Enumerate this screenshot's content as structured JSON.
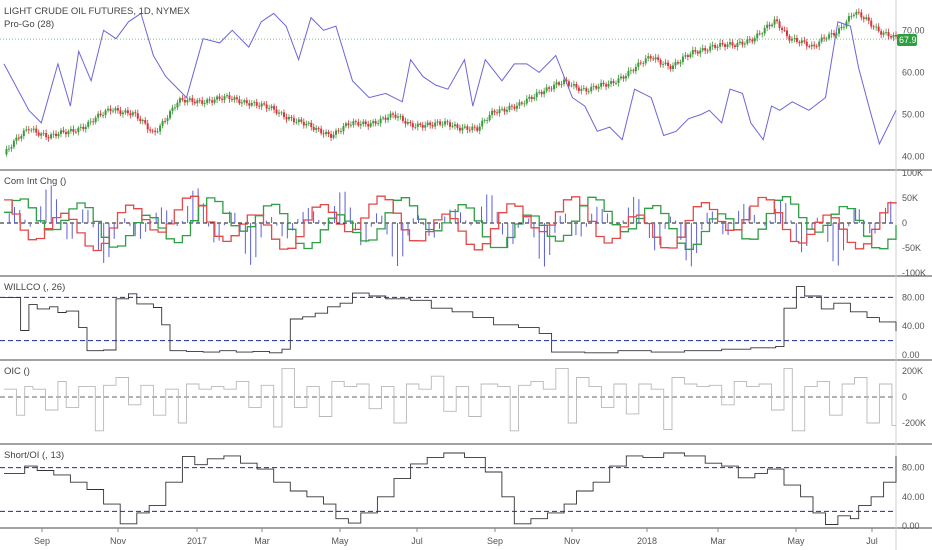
{
  "header": {
    "symbol_line": "LIGHT CRUDE OIL FUTURES, 1D, NYMEX",
    "indicator_line": "Pro-Go (28)",
    "last_price_badge": "67.91"
  },
  "colors": {
    "up_candle": "#3c9a3c",
    "down_candle": "#d8343c",
    "pro_go": "#6b66d8",
    "com_int_green": "#2f9e44",
    "com_int_red": "#e24a4a",
    "com_int_hist": "#5a5fd6",
    "guide_dashed": "#1f2aa0",
    "oic_line": "#b8b8b8",
    "black_line": "#333333",
    "badge_bg": "#2e9e3e"
  },
  "x_axis_labels": [
    "Sep",
    "Nov",
    "2017",
    "Mar",
    "May",
    "Jul",
    "Sep",
    "Nov",
    "2018",
    "Mar",
    "May",
    "Jul"
  ],
  "chart_data": [
    {
      "type": "candlestick",
      "title": "LIGHT CRUDE OIL FUTURES, 1D, NYMEX",
      "overlay": "Pro-Go (28)",
      "y_ticks": [
        "70.00",
        "60.00",
        "50.00",
        "40.00"
      ],
      "ylim": [
        38,
        76
      ],
      "last_value": 67.91,
      "close_path": [
        [
          0,
          40.5
        ],
        [
          12,
          47
        ],
        [
          22,
          44.5
        ],
        [
          40,
          47.5
        ],
        [
          52,
          51.5
        ],
        [
          62,
          50.2
        ],
        [
          72,
          45.5
        ],
        [
          84,
          53
        ],
        [
          96,
          53.3
        ],
        [
          108,
          53.8
        ],
        [
          118,
          53
        ],
        [
          130,
          51
        ],
        [
          140,
          48.8
        ],
        [
          150,
          46.4
        ],
        [
          158,
          45.3
        ],
        [
          166,
          47.5
        ],
        [
          176,
          48
        ],
        [
          188,
          49.6
        ],
        [
          196,
          47.8
        ],
        [
          206,
          47.3
        ],
        [
          214,
          48
        ],
        [
          220,
          47
        ],
        [
          228,
          46.2
        ],
        [
          236,
          51
        ],
        [
          248,
          51.8
        ],
        [
          258,
          55.5
        ],
        [
          270,
          57.5
        ],
        [
          280,
          56
        ],
        [
          292,
          57
        ],
        [
          302,
          60.5
        ],
        [
          312,
          63.5
        ],
        [
          322,
          61.5
        ],
        [
          332,
          64.5
        ],
        [
          342,
          66.5
        ],
        [
          352,
          66.2
        ],
        [
          362,
          68.5
        ],
        [
          372,
          72
        ],
        [
          378,
          68.5
        ],
        [
          384,
          67.5
        ],
        [
          390,
          65.5
        ],
        [
          396,
          68.5
        ],
        [
          402,
          70
        ],
        [
          410,
          74
        ],
        [
          416,
          72.5
        ],
        [
          422,
          70
        ],
        [
          430,
          67.9
        ]
      ],
      "pro_go_path": [
        [
          0,
          62
        ],
        [
          12,
          51
        ],
        [
          18,
          48
        ],
        [
          26,
          62
        ],
        [
          32,
          52
        ],
        [
          36,
          65
        ],
        [
          42,
          58
        ],
        [
          48,
          70
        ],
        [
          54,
          68
        ],
        [
          60,
          72
        ],
        [
          66,
          74
        ],
        [
          72,
          64
        ],
        [
          78,
          59
        ],
        [
          82,
          57
        ],
        [
          88,
          54
        ],
        [
          96,
          68
        ],
        [
          104,
          67
        ],
        [
          110,
          70
        ],
        [
          118,
          66
        ],
        [
          124,
          72
        ],
        [
          130,
          74
        ],
        [
          136,
          71
        ],
        [
          142,
          63
        ],
        [
          148,
          73
        ],
        [
          154,
          70
        ],
        [
          160,
          71
        ],
        [
          168,
          58
        ],
        [
          176,
          54
        ],
        [
          184,
          55
        ],
        [
          192,
          53
        ],
        [
          196,
          63
        ],
        [
          202,
          59
        ],
        [
          208,
          57
        ],
        [
          214,
          56
        ],
        [
          222,
          63
        ],
        [
          226,
          52
        ],
        [
          232,
          63
        ],
        [
          240,
          58
        ],
        [
          246,
          62
        ],
        [
          252,
          62
        ],
        [
          258,
          60
        ],
        [
          266,
          64
        ],
        [
          274,
          54
        ],
        [
          280,
          52
        ],
        [
          286,
          46
        ],
        [
          292,
          47
        ],
        [
          298,
          44
        ],
        [
          304,
          56
        ],
        [
          312,
          54
        ],
        [
          318,
          45
        ],
        [
          324,
          46
        ],
        [
          330,
          49
        ],
        [
          336,
          50
        ],
        [
          340,
          51
        ],
        [
          346,
          48
        ],
        [
          350,
          56
        ],
        [
          356,
          55
        ],
        [
          360,
          48
        ],
        [
          366,
          44
        ],
        [
          370,
          52
        ],
        [
          374,
          51
        ],
        [
          380,
          53
        ],
        [
          388,
          51
        ],
        [
          396,
          54
        ],
        [
          402,
          72
        ],
        [
          408,
          71
        ],
        [
          412,
          61
        ],
        [
          418,
          50
        ],
        [
          422,
          43
        ],
        [
          426,
          47
        ],
        [
          430,
          51
        ]
      ]
    },
    {
      "type": "line+histogram",
      "title": "Com Int Chg ()",
      "y_ticks": [
        "100K",
        "50K",
        "0",
        "-50K",
        "-100K"
      ],
      "ylim": [
        -100000,
        100000
      ]
    },
    {
      "type": "step",
      "title": "WILLCO (, 26)",
      "y_ticks": [
        "80.00",
        "40.00",
        "0.00"
      ],
      "ylim": [
        0,
        100
      ],
      "guide_levels": [
        80,
        20
      ],
      "path": [
        [
          0,
          80
        ],
        [
          8,
          34
        ],
        [
          12,
          70
        ],
        [
          16,
          64
        ],
        [
          22,
          67
        ],
        [
          26,
          59
        ],
        [
          30,
          61
        ],
        [
          36,
          38
        ],
        [
          40,
          6
        ],
        [
          48,
          7
        ],
        [
          54,
          78
        ],
        [
          60,
          85
        ],
        [
          64,
          71
        ],
        [
          72,
          66
        ],
        [
          76,
          42
        ],
        [
          80,
          6
        ],
        [
          88,
          5
        ],
        [
          96,
          4
        ],
        [
          104,
          6
        ],
        [
          112,
          4
        ],
        [
          120,
          5
        ],
        [
          128,
          3
        ],
        [
          134,
          8
        ],
        [
          138,
          50
        ],
        [
          144,
          53
        ],
        [
          150,
          58
        ],
        [
          156,
          67
        ],
        [
          162,
          72
        ],
        [
          168,
          86
        ],
        [
          176,
          82
        ],
        [
          184,
          78
        ],
        [
          196,
          76
        ],
        [
          206,
          65
        ],
        [
          216,
          60
        ],
        [
          226,
          52
        ],
        [
          236,
          42
        ],
        [
          248,
          38
        ],
        [
          258,
          30
        ],
        [
          264,
          4
        ],
        [
          280,
          3
        ],
        [
          296,
          6
        ],
        [
          312,
          4
        ],
        [
          328,
          6
        ],
        [
          346,
          8
        ],
        [
          360,
          10
        ],
        [
          372,
          12
        ],
        [
          376,
          65
        ],
        [
          382,
          95
        ],
        [
          386,
          82
        ],
        [
          394,
          64
        ],
        [
          400,
          72
        ],
        [
          408,
          60
        ],
        [
          416,
          52
        ],
        [
          422,
          46
        ],
        [
          430,
          33
        ]
      ]
    },
    {
      "type": "step",
      "title": "OIC ()",
      "y_ticks": [
        "200K",
        "0",
        "-200K"
      ],
      "ylim": [
        -300000,
        300000
      ],
      "guide_levels": [
        0
      ],
      "path": [
        [
          0,
          60000
        ],
        [
          6,
          -140000
        ],
        [
          10,
          80000
        ],
        [
          14,
          60000
        ],
        [
          20,
          -100000
        ],
        [
          26,
          120000
        ],
        [
          30,
          -80000
        ],
        [
          36,
          80000
        ],
        [
          44,
          -260000
        ],
        [
          48,
          90000
        ],
        [
          54,
          150000
        ],
        [
          60,
          -60000
        ],
        [
          66,
          90000
        ],
        [
          72,
          -140000
        ],
        [
          78,
          60000
        ],
        [
          84,
          -200000
        ],
        [
          88,
          100000
        ],
        [
          94,
          60000
        ],
        [
          100,
          80000
        ],
        [
          106,
          60000
        ],
        [
          112,
          120000
        ],
        [
          118,
          -80000
        ],
        [
          124,
          90000
        ],
        [
          130,
          -230000
        ],
        [
          134,
          220000
        ],
        [
          140,
          -80000
        ],
        [
          146,
          80000
        ],
        [
          152,
          -150000
        ],
        [
          158,
          120000
        ],
        [
          164,
          80000
        ],
        [
          170,
          100000
        ],
        [
          176,
          -90000
        ],
        [
          182,
          80000
        ],
        [
          188,
          -200000
        ],
        [
          194,
          100000
        ],
        [
          200,
          60000
        ],
        [
          206,
          160000
        ],
        [
          212,
          -110000
        ],
        [
          218,
          80000
        ],
        [
          224,
          -150000
        ],
        [
          230,
          100000
        ],
        [
          238,
          80000
        ],
        [
          244,
          -260000
        ],
        [
          248,
          90000
        ],
        [
          254,
          120000
        ],
        [
          260,
          60000
        ],
        [
          266,
          220000
        ],
        [
          272,
          -200000
        ],
        [
          276,
          150000
        ],
        [
          282,
          80000
        ],
        [
          288,
          -80000
        ],
        [
          294,
          100000
        ],
        [
          300,
          -130000
        ],
        [
          306,
          100000
        ],
        [
          312,
          60000
        ],
        [
          318,
          -250000
        ],
        [
          322,
          150000
        ],
        [
          328,
          100000
        ],
        [
          334,
          80000
        ],
        [
          340,
          90000
        ],
        [
          346,
          -60000
        ],
        [
          352,
          120000
        ],
        [
          358,
          80000
        ],
        [
          364,
          100000
        ],
        [
          370,
          -100000
        ],
        [
          376,
          220000
        ],
        [
          380,
          -260000
        ],
        [
          386,
          80000
        ],
        [
          392,
          120000
        ],
        [
          398,
          -140000
        ],
        [
          404,
          100000
        ],
        [
          410,
          150000
        ],
        [
          416,
          -200000
        ],
        [
          422,
          100000
        ],
        [
          428,
          -220000
        ],
        [
          430,
          -220000
        ]
      ]
    },
    {
      "type": "step",
      "title": "Short/OI (, 13)",
      "y_ticks": [
        "80.00",
        "40.00",
        "0.00"
      ],
      "ylim": [
        0,
        100
      ],
      "guide_levels": [
        80,
        20
      ],
      "path": [
        [
          0,
          72
        ],
        [
          10,
          82
        ],
        [
          16,
          76
        ],
        [
          24,
          70
        ],
        [
          32,
          60
        ],
        [
          40,
          50
        ],
        [
          48,
          30
        ],
        [
          56,
          3
        ],
        [
          64,
          18
        ],
        [
          70,
          28
        ],
        [
          78,
          60
        ],
        [
          86,
          95
        ],
        [
          92,
          84
        ],
        [
          98,
          92
        ],
        [
          106,
          96
        ],
        [
          114,
          86
        ],
        [
          122,
          78
        ],
        [
          130,
          60
        ],
        [
          138,
          48
        ],
        [
          146,
          40
        ],
        [
          154,
          30
        ],
        [
          160,
          10
        ],
        [
          166,
          4
        ],
        [
          172,
          18
        ],
        [
          180,
          40
        ],
        [
          188,
          65
        ],
        [
          196,
          85
        ],
        [
          204,
          94
        ],
        [
          212,
          100
        ],
        [
          222,
          94
        ],
        [
          232,
          74
        ],
        [
          240,
          40
        ],
        [
          246,
          3
        ],
        [
          254,
          10
        ],
        [
          262,
          18
        ],
        [
          270,
          30
        ],
        [
          276,
          48
        ],
        [
          284,
          60
        ],
        [
          292,
          82
        ],
        [
          300,
          96
        ],
        [
          308,
          94
        ],
        [
          318,
          100
        ],
        [
          328,
          96
        ],
        [
          338,
          86
        ],
        [
          346,
          82
        ],
        [
          354,
          66
        ],
        [
          362,
          72
        ],
        [
          368,
          78
        ],
        [
          376,
          56
        ],
        [
          384,
          40
        ],
        [
          390,
          18
        ],
        [
          396,
          2
        ],
        [
          402,
          14
        ],
        [
          408,
          10
        ],
        [
          412,
          28
        ],
        [
          418,
          40
        ],
        [
          424,
          60
        ],
        [
          430,
          96
        ]
      ]
    }
  ]
}
